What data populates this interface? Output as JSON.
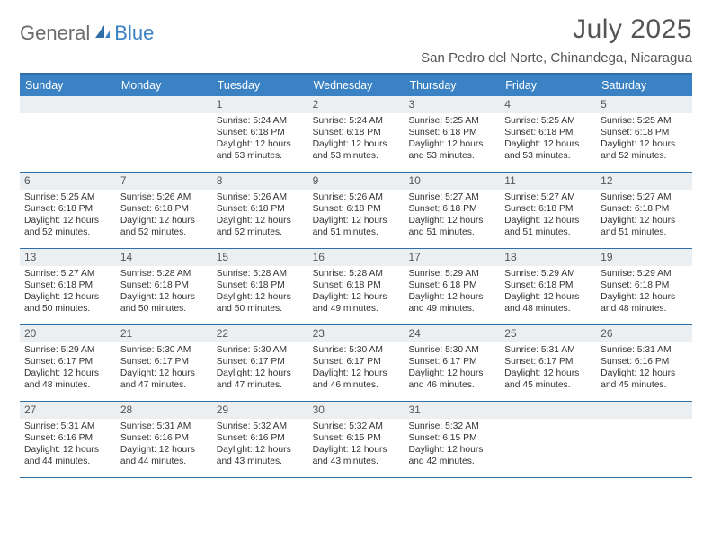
{
  "logo": {
    "part1": "General",
    "part2": "Blue"
  },
  "title": "July 2025",
  "location": "San Pedro del Norte, Chinandega, Nicaragua",
  "colors": {
    "header_bg": "#3b82c4",
    "border": "#2e6fa7",
    "daynum_bg": "#eceff1",
    "text": "#333333",
    "title_text": "#555555"
  },
  "days_of_week": [
    "Sunday",
    "Monday",
    "Tuesday",
    "Wednesday",
    "Thursday",
    "Friday",
    "Saturday"
  ],
  "weeks": [
    [
      null,
      null,
      {
        "n": "1",
        "sr": "Sunrise: 5:24 AM",
        "ss": "Sunset: 6:18 PM",
        "dl1": "Daylight: 12 hours",
        "dl2": "and 53 minutes."
      },
      {
        "n": "2",
        "sr": "Sunrise: 5:24 AM",
        "ss": "Sunset: 6:18 PM",
        "dl1": "Daylight: 12 hours",
        "dl2": "and 53 minutes."
      },
      {
        "n": "3",
        "sr": "Sunrise: 5:25 AM",
        "ss": "Sunset: 6:18 PM",
        "dl1": "Daylight: 12 hours",
        "dl2": "and 53 minutes."
      },
      {
        "n": "4",
        "sr": "Sunrise: 5:25 AM",
        "ss": "Sunset: 6:18 PM",
        "dl1": "Daylight: 12 hours",
        "dl2": "and 53 minutes."
      },
      {
        "n": "5",
        "sr": "Sunrise: 5:25 AM",
        "ss": "Sunset: 6:18 PM",
        "dl1": "Daylight: 12 hours",
        "dl2": "and 52 minutes."
      }
    ],
    [
      {
        "n": "6",
        "sr": "Sunrise: 5:25 AM",
        "ss": "Sunset: 6:18 PM",
        "dl1": "Daylight: 12 hours",
        "dl2": "and 52 minutes."
      },
      {
        "n": "7",
        "sr": "Sunrise: 5:26 AM",
        "ss": "Sunset: 6:18 PM",
        "dl1": "Daylight: 12 hours",
        "dl2": "and 52 minutes."
      },
      {
        "n": "8",
        "sr": "Sunrise: 5:26 AM",
        "ss": "Sunset: 6:18 PM",
        "dl1": "Daylight: 12 hours",
        "dl2": "and 52 minutes."
      },
      {
        "n": "9",
        "sr": "Sunrise: 5:26 AM",
        "ss": "Sunset: 6:18 PM",
        "dl1": "Daylight: 12 hours",
        "dl2": "and 51 minutes."
      },
      {
        "n": "10",
        "sr": "Sunrise: 5:27 AM",
        "ss": "Sunset: 6:18 PM",
        "dl1": "Daylight: 12 hours",
        "dl2": "and 51 minutes."
      },
      {
        "n": "11",
        "sr": "Sunrise: 5:27 AM",
        "ss": "Sunset: 6:18 PM",
        "dl1": "Daylight: 12 hours",
        "dl2": "and 51 minutes."
      },
      {
        "n": "12",
        "sr": "Sunrise: 5:27 AM",
        "ss": "Sunset: 6:18 PM",
        "dl1": "Daylight: 12 hours",
        "dl2": "and 51 minutes."
      }
    ],
    [
      {
        "n": "13",
        "sr": "Sunrise: 5:27 AM",
        "ss": "Sunset: 6:18 PM",
        "dl1": "Daylight: 12 hours",
        "dl2": "and 50 minutes."
      },
      {
        "n": "14",
        "sr": "Sunrise: 5:28 AM",
        "ss": "Sunset: 6:18 PM",
        "dl1": "Daylight: 12 hours",
        "dl2": "and 50 minutes."
      },
      {
        "n": "15",
        "sr": "Sunrise: 5:28 AM",
        "ss": "Sunset: 6:18 PM",
        "dl1": "Daylight: 12 hours",
        "dl2": "and 50 minutes."
      },
      {
        "n": "16",
        "sr": "Sunrise: 5:28 AM",
        "ss": "Sunset: 6:18 PM",
        "dl1": "Daylight: 12 hours",
        "dl2": "and 49 minutes."
      },
      {
        "n": "17",
        "sr": "Sunrise: 5:29 AM",
        "ss": "Sunset: 6:18 PM",
        "dl1": "Daylight: 12 hours",
        "dl2": "and 49 minutes."
      },
      {
        "n": "18",
        "sr": "Sunrise: 5:29 AM",
        "ss": "Sunset: 6:18 PM",
        "dl1": "Daylight: 12 hours",
        "dl2": "and 48 minutes."
      },
      {
        "n": "19",
        "sr": "Sunrise: 5:29 AM",
        "ss": "Sunset: 6:18 PM",
        "dl1": "Daylight: 12 hours",
        "dl2": "and 48 minutes."
      }
    ],
    [
      {
        "n": "20",
        "sr": "Sunrise: 5:29 AM",
        "ss": "Sunset: 6:17 PM",
        "dl1": "Daylight: 12 hours",
        "dl2": "and 48 minutes."
      },
      {
        "n": "21",
        "sr": "Sunrise: 5:30 AM",
        "ss": "Sunset: 6:17 PM",
        "dl1": "Daylight: 12 hours",
        "dl2": "and 47 minutes."
      },
      {
        "n": "22",
        "sr": "Sunrise: 5:30 AM",
        "ss": "Sunset: 6:17 PM",
        "dl1": "Daylight: 12 hours",
        "dl2": "and 47 minutes."
      },
      {
        "n": "23",
        "sr": "Sunrise: 5:30 AM",
        "ss": "Sunset: 6:17 PM",
        "dl1": "Daylight: 12 hours",
        "dl2": "and 46 minutes."
      },
      {
        "n": "24",
        "sr": "Sunrise: 5:30 AM",
        "ss": "Sunset: 6:17 PM",
        "dl1": "Daylight: 12 hours",
        "dl2": "and 46 minutes."
      },
      {
        "n": "25",
        "sr": "Sunrise: 5:31 AM",
        "ss": "Sunset: 6:17 PM",
        "dl1": "Daylight: 12 hours",
        "dl2": "and 45 minutes."
      },
      {
        "n": "26",
        "sr": "Sunrise: 5:31 AM",
        "ss": "Sunset: 6:16 PM",
        "dl1": "Daylight: 12 hours",
        "dl2": "and 45 minutes."
      }
    ],
    [
      {
        "n": "27",
        "sr": "Sunrise: 5:31 AM",
        "ss": "Sunset: 6:16 PM",
        "dl1": "Daylight: 12 hours",
        "dl2": "and 44 minutes."
      },
      {
        "n": "28",
        "sr": "Sunrise: 5:31 AM",
        "ss": "Sunset: 6:16 PM",
        "dl1": "Daylight: 12 hours",
        "dl2": "and 44 minutes."
      },
      {
        "n": "29",
        "sr": "Sunrise: 5:32 AM",
        "ss": "Sunset: 6:16 PM",
        "dl1": "Daylight: 12 hours",
        "dl2": "and 43 minutes."
      },
      {
        "n": "30",
        "sr": "Sunrise: 5:32 AM",
        "ss": "Sunset: 6:15 PM",
        "dl1": "Daylight: 12 hours",
        "dl2": "and 43 minutes."
      },
      {
        "n": "31",
        "sr": "Sunrise: 5:32 AM",
        "ss": "Sunset: 6:15 PM",
        "dl1": "Daylight: 12 hours",
        "dl2": "and 42 minutes."
      },
      null,
      null
    ]
  ]
}
